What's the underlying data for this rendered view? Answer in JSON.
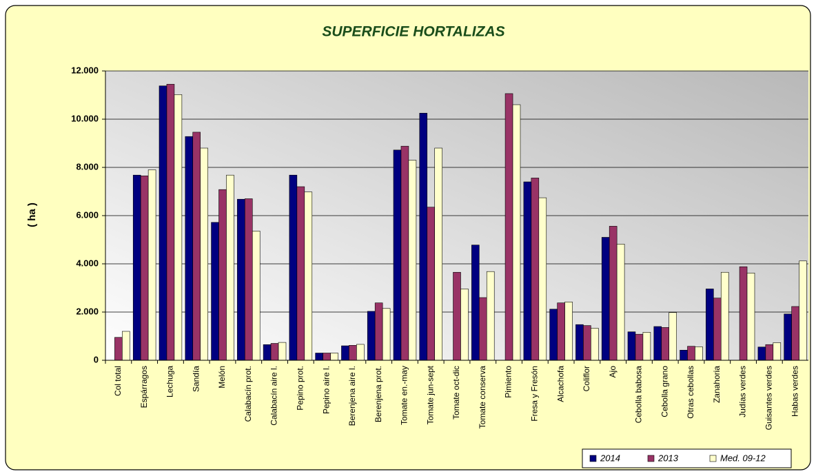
{
  "chart_data": {
    "type": "bar",
    "title": "SUPERFICIE HORTALIZAS",
    "y_label": "( ha )",
    "categories": [
      "Col total",
      "Espárragos",
      "Lechuga",
      "Sandía",
      "Melón",
      "Calabacín prot.",
      "Calabacín aire l.",
      "Pepino prot.",
      "Pepino aire l.",
      "Berenjena aire l.",
      "Berenjena prot.",
      "Tomate en.-may",
      "Tomate jun-sept",
      "Tomate oct-dic",
      "Tomate conserva",
      "Pimiento",
      "Fresa y Fresón",
      "Alcachofa",
      "Coliflor",
      "Ajo",
      "Cebolla babosa",
      "Cebolla grano",
      "Otras cebollas",
      "Zanahoria",
      "Judías verdes",
      "Guisantes verdes",
      "Habas verdes"
    ],
    "series": [
      {
        "name": "2014",
        "color": "#000080",
        "values": [
          null,
          7680,
          11380,
          9280,
          5720,
          6680,
          650,
          7680,
          300,
          600,
          2030,
          8720,
          10250,
          null,
          4780,
          null,
          7400,
          2120,
          1480,
          5100,
          1180,
          1400,
          420,
          2960,
          null,
          550,
          1920
        ]
      },
      {
        "name": "2013",
        "color": "#993366",
        "values": [
          950,
          7650,
          11450,
          9460,
          7080,
          6700,
          700,
          7200,
          300,
          620,
          2380,
          8880,
          6350,
          3650,
          2600,
          11060,
          7560,
          2380,
          1440,
          5560,
          1080,
          1360,
          580,
          2580,
          3880,
          650,
          2230
        ]
      },
      {
        "name": "Med. 09-12",
        "color": "#ffffcc",
        "values": [
          1200,
          7900,
          11020,
          8800,
          7680,
          5360,
          740,
          6980,
          300,
          660,
          2150,
          8300,
          8800,
          2960,
          3680,
          10600,
          6740,
          2420,
          1330,
          4820,
          1160,
          1980,
          560,
          3650,
          3620,
          730,
          4120
        ]
      }
    ],
    "ylim": [
      0,
      12000
    ],
    "yticks": [
      0,
      {
        "value": 2000,
        "label": "2.000"
      },
      {
        "value": 4000,
        "label": "4.000"
      },
      {
        "value": 6000,
        "label": "6.000"
      },
      {
        "value": 8000,
        "label": "8.000"
      },
      {
        "value": 10000,
        "label": "10.000"
      },
      {
        "value": 12000,
        "label": "12.000"
      }
    ],
    "grid": true,
    "legend": "bottom-right"
  }
}
